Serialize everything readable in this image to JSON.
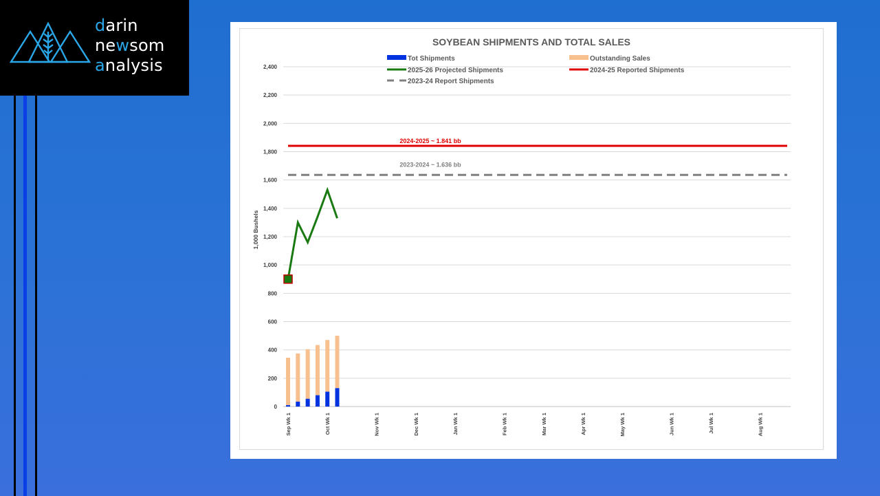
{
  "brand": {
    "line1_accent": "d",
    "line1_rest": "arin",
    "line2_pre": "ne",
    "line2_accent": "w",
    "line2_rest": "som",
    "line3_accent": "a",
    "line3_rest": "nalysis"
  },
  "chart_data": {
    "type": "bar",
    "title": "SOYBEAN SHIPMENTS AND TOTAL SALES",
    "ylabel": "1,000 Bushels",
    "xlabel": "",
    "ylim": [
      0,
      2400
    ],
    "yticks": [
      "0",
      "200",
      "400",
      "600",
      "800",
      "1,000",
      "1,200",
      "1,400",
      "1,600",
      "1,800",
      "2,000",
      "2,200",
      "2,400"
    ],
    "x_tick_labels": [
      "Sep Wk 1",
      "Oct Wk 1",
      "Nov Wk 1",
      "Dec Wk 1",
      "Jan Wk 1",
      "Feb Wk 1",
      "Mar Wk 1",
      "Apr Wk 1",
      "May Wk 1",
      "Jun Wk 1",
      "Jul Wk 1",
      "Aug Wk 1"
    ],
    "x_tick_week_index": [
      0,
      4,
      9,
      13,
      17,
      22,
      26,
      30,
      34,
      39,
      43,
      48
    ],
    "total_weeks": 53,
    "legend": [
      {
        "label": "Tot Shipments",
        "kind": "bar",
        "color": "#0033e0"
      },
      {
        "label": "Outstanding Sales",
        "kind": "bar",
        "color": "#f8c08f"
      },
      {
        "label": "2025-26 Projected Shipments",
        "kind": "line",
        "color": "#1a7a12"
      },
      {
        "label": "2024-25 Reported Shipments",
        "kind": "line",
        "color": "#e00000"
      },
      {
        "label": "2023-24 Report Shipments",
        "kind": "dash",
        "color": "#808080"
      }
    ],
    "series": [
      {
        "name": "Tot Shipments",
        "type": "bar-stack",
        "color": "#0033e0",
        "values": [
          10,
          35,
          55,
          80,
          105,
          130
        ]
      },
      {
        "name": "Outstanding Sales",
        "type": "bar-stack",
        "color": "#f8c08f",
        "values": [
          335,
          340,
          350,
          355,
          365,
          370
        ]
      },
      {
        "name": "2025-26 Projected Shipments",
        "type": "line",
        "color": "#1a7a12",
        "values": [
          900,
          1300,
          1160,
          1340,
          1530,
          1330
        ]
      },
      {
        "name": "2024-25 Reported Shipments",
        "type": "hline",
        "color": "#e00000",
        "value": 1841
      },
      {
        "name": "2023-24 Report Shipments",
        "type": "hline-dash",
        "color": "#808080",
        "value": 1636
      }
    ],
    "annotations": [
      {
        "text": "2024-2025 ~ 1.841 bb",
        "color": "#e00000"
      },
      {
        "text": "2023-2024 ~ 1.636 bb",
        "color": "#808080"
      }
    ],
    "start_marker": {
      "value": 900,
      "fill": "#1a7a12",
      "stroke": "#c00000"
    },
    "grid": true,
    "legend_position": "top"
  }
}
